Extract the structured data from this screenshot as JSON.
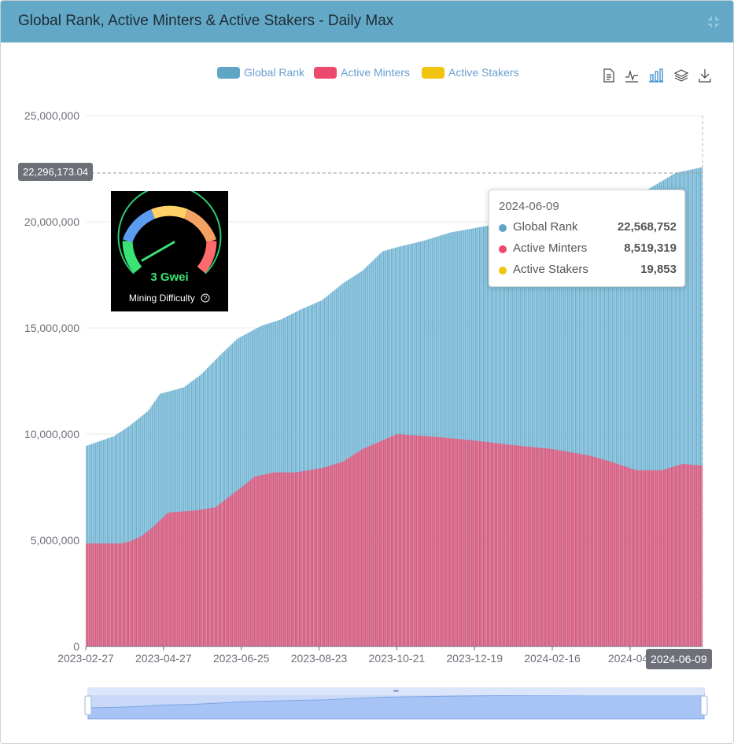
{
  "header": {
    "title": "Global Rank, Active Minters & Active Stakers - Daily Max"
  },
  "legend": [
    {
      "name": "Global Rank",
      "color": "#5fa5c6"
    },
    {
      "name": "Active Minters",
      "color": "#ec4a6d"
    },
    {
      "name": "Active Stakers",
      "color": "#f1c40f"
    }
  ],
  "toolbox": [
    "data-view-icon",
    "line-chart-icon",
    "bar-chart-icon",
    "stack-icon",
    "download-icon"
  ],
  "gauge": {
    "value": "3 Gwei",
    "label": "Mining Difficulty",
    "icon": "help-icon"
  },
  "tooltip": {
    "date": "2024-06-09",
    "rows": [
      {
        "name": "Global Rank",
        "value": "22,568,752",
        "color": "#5fa5c6"
      },
      {
        "name": "Active Minters",
        "value": "8,519,319",
        "color": "#ec4a6d"
      },
      {
        "name": "Active Stakers",
        "value": "19,853",
        "color": "#f1c40f"
      }
    ]
  },
  "axis_pointer": {
    "y_label": "22,296,173.04",
    "x_label": "2024-06-09"
  },
  "chart_data": {
    "type": "bar",
    "ylim": [
      0,
      25000000
    ],
    "y_ticks": [
      "0",
      "5,000,000",
      "10,000,000",
      "15,000,000",
      "20,000,000",
      "25,000,000"
    ],
    "x_range": [
      "2023-02-27",
      "2024-06-09"
    ],
    "x_ticks": [
      "2023-02-27",
      "2023-04-27",
      "2023-06-25",
      "2023-08-23",
      "2023-10-21",
      "2023-12-19",
      "2024-02-16",
      "2024-04-"
    ],
    "stacked": false,
    "grid": true,
    "legend_position": "top",
    "series": [
      {
        "name": "Global Rank",
        "color": "#6db2d1",
        "points": [
          [
            "2023-02-27",
            9450000
          ],
          [
            "2023-03-20",
            9900000
          ],
          [
            "2023-04-01",
            10400000
          ],
          [
            "2023-04-15",
            11100000
          ],
          [
            "2023-04-24",
            11900000
          ],
          [
            "2023-05-12",
            12200000
          ],
          [
            "2023-05-25",
            12800000
          ],
          [
            "2023-06-10",
            13800000
          ],
          [
            "2023-06-22",
            14500000
          ],
          [
            "2023-07-10",
            15100000
          ],
          [
            "2023-07-25",
            15400000
          ],
          [
            "2023-08-10",
            15900000
          ],
          [
            "2023-08-25",
            16300000
          ],
          [
            "2023-09-10",
            17100000
          ],
          [
            "2023-09-25",
            17700000
          ],
          [
            "2023-10-10",
            18600000
          ],
          [
            "2023-10-21",
            18800000
          ],
          [
            "2023-11-10",
            19100000
          ],
          [
            "2023-12-01",
            19500000
          ],
          [
            "2023-12-19",
            19700000
          ],
          [
            "2024-01-15",
            20000000
          ],
          [
            "2024-02-16",
            20300000
          ],
          [
            "2024-03-15",
            20600000
          ],
          [
            "2024-04-15",
            21000000
          ],
          [
            "2024-05-01",
            21600000
          ],
          [
            "2024-05-20",
            22300000
          ],
          [
            "2024-06-09",
            22568752
          ]
        ]
      },
      {
        "name": "Active Minters",
        "color": "#e0587c",
        "points": [
          [
            "2023-02-27",
            4850000
          ],
          [
            "2023-03-25",
            4850000
          ],
          [
            "2023-04-01",
            4950000
          ],
          [
            "2023-04-10",
            5200000
          ],
          [
            "2023-04-20",
            5700000
          ],
          [
            "2023-04-30",
            6300000
          ],
          [
            "2023-05-20",
            6400000
          ],
          [
            "2023-06-05",
            6550000
          ],
          [
            "2023-06-25",
            7500000
          ],
          [
            "2023-07-05",
            8000000
          ],
          [
            "2023-07-20",
            8200000
          ],
          [
            "2023-08-05",
            8200000
          ],
          [
            "2023-08-25",
            8400000
          ],
          [
            "2023-09-10",
            8700000
          ],
          [
            "2023-09-25",
            9300000
          ],
          [
            "2023-10-10",
            9700000
          ],
          [
            "2023-10-21",
            10000000
          ],
          [
            "2023-11-15",
            9900000
          ],
          [
            "2023-12-19",
            9700000
          ],
          [
            "2024-01-15",
            9500000
          ],
          [
            "2024-02-16",
            9300000
          ],
          [
            "2024-03-15",
            9000000
          ],
          [
            "2024-04-01",
            8700000
          ],
          [
            "2024-04-20",
            8300000
          ],
          [
            "2024-05-10",
            8300000
          ],
          [
            "2024-05-25",
            8600000
          ],
          [
            "2024-06-09",
            8519319
          ]
        ]
      },
      {
        "name": "Active Stakers",
        "color": "#f1c40f",
        "points": [
          [
            "2023-02-27",
            1500
          ],
          [
            "2023-10-21",
            12000
          ],
          [
            "2024-06-09",
            19853
          ]
        ]
      }
    ]
  }
}
